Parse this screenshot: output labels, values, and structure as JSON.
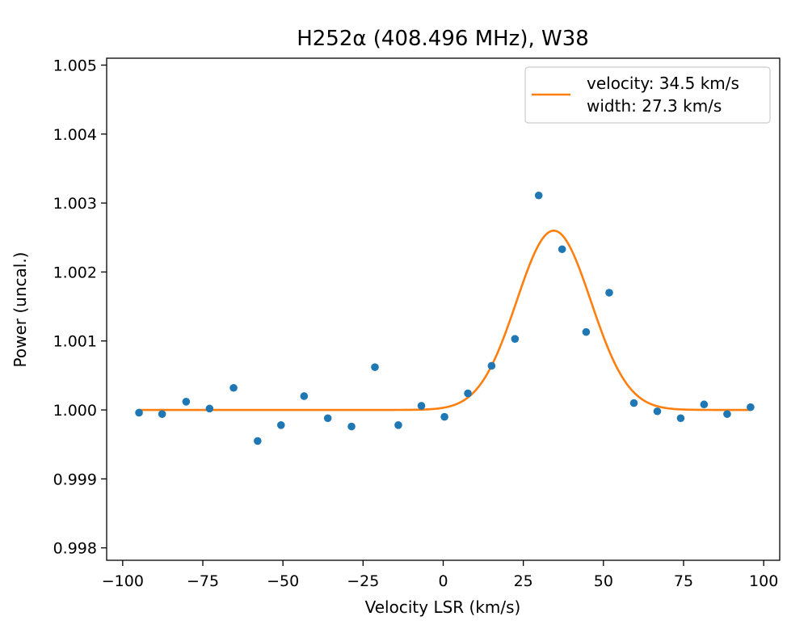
{
  "chart_data": {
    "type": "scatter",
    "title": "H252α (408.496 MHz), W38",
    "xlabel": "Velocity LSR (km/s)",
    "ylabel": "Power (uncal.)",
    "xlim": [
      -105,
      105
    ],
    "ylim": [
      0.99782,
      1.0051
    ],
    "x_ticks": [
      -100,
      -75,
      -50,
      -25,
      0,
      25,
      50,
      75,
      100
    ],
    "x_tick_labels": [
      "−100",
      "−75",
      "−50",
      "−25",
      "0",
      "25",
      "50",
      "75",
      "100"
    ],
    "y_ticks": [
      0.998,
      0.999,
      1.0,
      1.001,
      1.002,
      1.003,
      1.004,
      1.005
    ],
    "y_tick_labels": [
      "0.998",
      "0.999",
      "1.000",
      "1.001",
      "1.002",
      "1.003",
      "1.004",
      "1.005"
    ],
    "grid": false,
    "legend_position": "top-right",
    "series": [
      {
        "kind": "points",
        "color": "#1f77b4",
        "x": [
          -94.9,
          -87.7,
          -80.2,
          -72.9,
          -65.4,
          -57.9,
          -50.6,
          -43.4,
          -36.0,
          -28.6,
          -21.3,
          -14.0,
          -6.8,
          0.4,
          7.7,
          15.1,
          22.4,
          29.8,
          37.1,
          44.6,
          51.8,
          59.5,
          66.8,
          74.1,
          81.4,
          88.6,
          95.9
        ],
        "y": [
          0.99996,
          0.99994,
          1.00012,
          1.00002,
          1.00032,
          0.99955,
          0.99978,
          1.0002,
          0.99988,
          0.99976,
          1.00062,
          0.99978,
          1.00006,
          0.9999,
          1.00024,
          1.00064,
          1.00103,
          1.00311,
          1.00233,
          1.00113,
          1.0017,
          1.0001,
          0.99998,
          0.99988,
          1.00008,
          0.99994,
          1.00004
        ]
      },
      {
        "kind": "gaussian-fit",
        "color": "#ff7f0e",
        "x_range": [
          -95,
          96
        ],
        "baseline": 1.0,
        "amplitude": 0.0026,
        "center": 34.5,
        "fwhm": 27.3,
        "legend": [
          "velocity: 34.5 km/s",
          "width: 27.3 km/s"
        ]
      }
    ]
  }
}
